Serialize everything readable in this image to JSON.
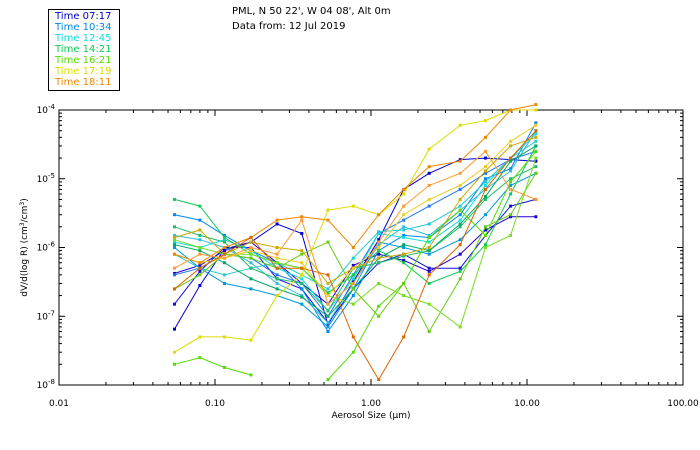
{
  "header": {
    "station": "PML, N 50 22', W 04 08', Alt 0m",
    "date": "Data from: 12 Jul 2019"
  },
  "legend": [
    {
      "label": "Time 07:17",
      "color": "#0000cc"
    },
    {
      "label": "Time 10:34",
      "color": "#0088ee"
    },
    {
      "label": "Time 12:45",
      "color": "#11dddd"
    },
    {
      "label": "Time 14:21",
      "color": "#11cc55"
    },
    {
      "label": "Time 16:21",
      "color": "#55dd00"
    },
    {
      "label": "Time 17:19",
      "color": "#dddd00"
    },
    {
      "label": "Time 18:11",
      "color": "#ee8800"
    }
  ],
  "chart_data": {
    "type": "line",
    "x_scale": "log",
    "y_scale": "log",
    "xlabel": "Aerosol Size (μm)",
    "ylabel_main": "dV/d(log R) (cm",
    "ylabel_sup1": "3",
    "ylabel_mid": "/cm",
    "ylabel_sup2": "3",
    "ylabel_end": ")",
    "xlim": [
      0.01,
      100
    ],
    "ylim": [
      1e-08,
      0.0001
    ],
    "x_ticks": [
      0.01,
      0.1,
      1,
      10,
      100
    ],
    "x_tick_labels": [
      "0.01",
      "0.10",
      "1.00",
      "10.00",
      "100.00"
    ],
    "y_ticks": [
      1e-08,
      1e-07,
      1e-06,
      1e-05,
      0.0001
    ],
    "y_tick_base": "10",
    "y_tick_exponents": [
      "-8",
      "-7",
      "-6",
      "-5",
      "-4"
    ],
    "x": [
      0.055,
      0.08,
      0.115,
      0.17,
      0.25,
      0.36,
      0.53,
      0.77,
      1.12,
      1.62,
      2.36,
      3.73,
      5.42,
      7.85,
      11.4
    ],
    "series": [
      {
        "name": "07:17 a",
        "color": "#0000cc",
        "values": [
          6.5e-08,
          2.8e-07,
          9.5e-07,
          1.2e-06,
          2.2e-06,
          1.6e-06,
          7.5e-08,
          3.2e-07,
          1.3e-06,
          7e-06,
          1.2e-05,
          1.9e-05,
          2e-05,
          1.9e-05,
          1.8e-05
        ]
      },
      {
        "name": "07:17 b",
        "color": "#1111dd",
        "values": [
          1.5e-07,
          4.5e-07,
          1e-06,
          1e-06,
          3.5e-07,
          2.5e-07,
          8e-08,
          2.5e-07,
          6e-07,
          8e-07,
          5e-07,
          5e-07,
          1.5e-06,
          4e-06,
          5e-06
        ]
      },
      {
        "name": "07:17 c",
        "color": "#2200cc",
        "values": [
          4.2e-07,
          5.5e-07,
          9e-07,
          1.2e-06,
          6e-07,
          3e-07,
          1.5e-07,
          5.5e-07,
          8e-07,
          6.5e-07,
          4.5e-07,
          8e-07,
          1.8e-06,
          2.8e-06,
          2.8e-06
        ]
      },
      {
        "name": "10:34 a",
        "color": "#0088ee",
        "values": [
          3e-06,
          2.5e-06,
          1.5e-06,
          9e-07,
          6e-07,
          2.5e-07,
          6e-08,
          2e-07,
          9e-07,
          1.5e-06,
          1.4e-06,
          3e-06,
          1e-05,
          1.4e-05,
          6.5e-05
        ]
      },
      {
        "name": "10:34 b",
        "color": "#0099dd",
        "values": [
          1e-06,
          5e-07,
          3e-07,
          2.5e-07,
          2e-07,
          1.5e-07,
          7e-08,
          2.5e-07,
          1.2e-06,
          1e-06,
          8e-07,
          1.3e-06,
          3e-06,
          8e-06,
          1.2e-05
        ]
      },
      {
        "name": "10:34 c",
        "color": "#2277ee",
        "values": [
          4e-07,
          5e-07,
          8e-07,
          7e-07,
          4e-07,
          3e-07,
          1e-07,
          4e-07,
          1.6e-06,
          2.5e-06,
          4e-06,
          7e-06,
          1.2e-05,
          1.9e-05,
          2.5e-05
        ]
      },
      {
        "name": "12:45 a",
        "color": "#11dddd",
        "values": [
          1.2e-06,
          1e-06,
          1.3e-06,
          9e-07,
          5e-07,
          3.5e-07,
          1.2e-07,
          3.5e-07,
          1.6e-06,
          1.4e-06,
          1.2e-06,
          2.5e-06,
          8e-06,
          2e-05,
          4.5e-05
        ]
      },
      {
        "name": "12:45 b",
        "color": "#22cccc",
        "values": [
          8e-07,
          5e-07,
          4e-07,
          5e-07,
          6e-07,
          4e-07,
          2.5e-07,
          7e-07,
          1.7e-06,
          1.8e-06,
          2.2e-06,
          4e-06,
          9e-06,
          2e-05,
          3.5e-05
        ]
      },
      {
        "name": "12:45 c",
        "color": "#33bbdd",
        "values": [
          1.5e-06,
          1.3e-06,
          1e-06,
          6e-07,
          3e-07,
          2e-07,
          8e-08,
          3e-07,
          1.1e-06,
          2e-06,
          1.5e-06,
          3.5e-06,
          7e-06,
          1.3e-05,
          5e-05
        ]
      },
      {
        "name": "14:21 a",
        "color": "#11cc55",
        "values": [
          5e-06,
          4e-06,
          1.4e-06,
          8e-07,
          6e-07,
          5e-07,
          2.2e-07,
          4e-07,
          9e-07,
          6e-07,
          3e-07,
          4.5e-07,
          1.1e-06,
          6e-06,
          3e-05
        ]
      },
      {
        "name": "14:21 b",
        "color": "#22bb66",
        "values": [
          2e-06,
          1.5e-06,
          1.2e-06,
          5e-07,
          3.5e-07,
          3e-07,
          1.2e-07,
          5e-07,
          6e-07,
          7.5e-07,
          9e-07,
          2e-06,
          5e-06,
          1e-05,
          1.5e-05
        ]
      },
      {
        "name": "14:21 c",
        "color": "#00aa66",
        "values": [
          1.1e-06,
          9e-07,
          6e-07,
          3.5e-07,
          2.5e-07,
          1.9e-07,
          1e-07,
          2.5e-07,
          7e-07,
          1.1e-06,
          9e-07,
          2.2e-06,
          5.5e-06,
          1.8e-05,
          3e-05
        ]
      },
      {
        "name": "16:21 a",
        "color": "#55dd00",
        "values": [
          2e-08,
          2.5e-08,
          1.8e-08,
          1.4e-08,
          null,
          null,
          1.2e-08,
          3e-08,
          1.4e-07,
          3e-07,
          1.4e-06,
          3.5e-06,
          1.5e-06,
          9e-06,
          2.5e-05
        ]
      },
      {
        "name": "16:21 b",
        "color": "#66cc11",
        "values": [
          2.5e-07,
          4e-07,
          8e-07,
          7e-07,
          5e-07,
          8e-07,
          1.2e-06,
          2.5e-07,
          1e-07,
          3e-07,
          6e-08,
          3.5e-07,
          2e-06,
          3e-06,
          1.2e-05
        ]
      },
      {
        "name": "16:21 c",
        "color": "#77dd22",
        "values": [
          1.3e-06,
          1e-06,
          8e-07,
          8e-07,
          6e-07,
          5e-07,
          2e-07,
          1.5e-07,
          3e-07,
          2e-07,
          1.5e-07,
          7e-08,
          1e-06,
          1.5e-06,
          2e-05
        ]
      },
      {
        "name": "17:19 a",
        "color": "#dddd00",
        "values": [
          3e-08,
          5e-08,
          5e-08,
          4.5e-08,
          2e-07,
          4e-07,
          3.5e-06,
          4e-06,
          3e-06,
          6e-06,
          2.7e-05,
          6e-05,
          7e-05,
          0.0001,
          0.0001
        ]
      },
      {
        "name": "17:19 b",
        "color": "#ccaa00",
        "values": [
          1.4e-06,
          1.8e-06,
          8e-07,
          1.2e-06,
          1e-06,
          9e-07,
          3e-07,
          5e-07,
          7e-07,
          8e-07,
          1e-06,
          5e-06,
          1.3e-05,
          3e-05,
          4e-05
        ]
      },
      {
        "name": "17:19 c",
        "color": "#eecc22",
        "values": [
          8e-07,
          6e-07,
          7e-07,
          9e-07,
          7e-07,
          6e-07,
          2e-07,
          5e-07,
          1e-06,
          3e-06,
          5e-06,
          8e-06,
          1.5e-05,
          3.5e-05,
          6e-05
        ]
      },
      {
        "name": "18:11 a",
        "color": "#ee8800",
        "values": [
          8e-07,
          6e-07,
          1e-06,
          1.4e-06,
          2.5e-06,
          2.8e-06,
          2.5e-06,
          1e-06,
          3e-06,
          7e-06,
          1.5e-05,
          1.8e-05,
          4e-05,
          0.0001,
          0.00012
        ]
      },
      {
        "name": "18:11 b",
        "color": "#dd6600",
        "values": [
          2.5e-07,
          5e-07,
          8e-07,
          1.4e-06,
          5e-07,
          5e-07,
          4e-07,
          5e-08,
          1.2e-08,
          5e-08,
          4e-07,
          1.1e-06,
          7e-06,
          2e-05,
          5e-05
        ]
      },
      {
        "name": "18:11 c",
        "color": "#ff9933",
        "values": [
          5e-07,
          8e-07,
          7e-07,
          1e-06,
          8e-07,
          2.5e-06,
          1.5e-07,
          3e-07,
          1.2e-06,
          4e-06,
          8e-06,
          1.2e-05,
          2.5e-05,
          7e-06,
          5e-06
        ]
      }
    ]
  }
}
